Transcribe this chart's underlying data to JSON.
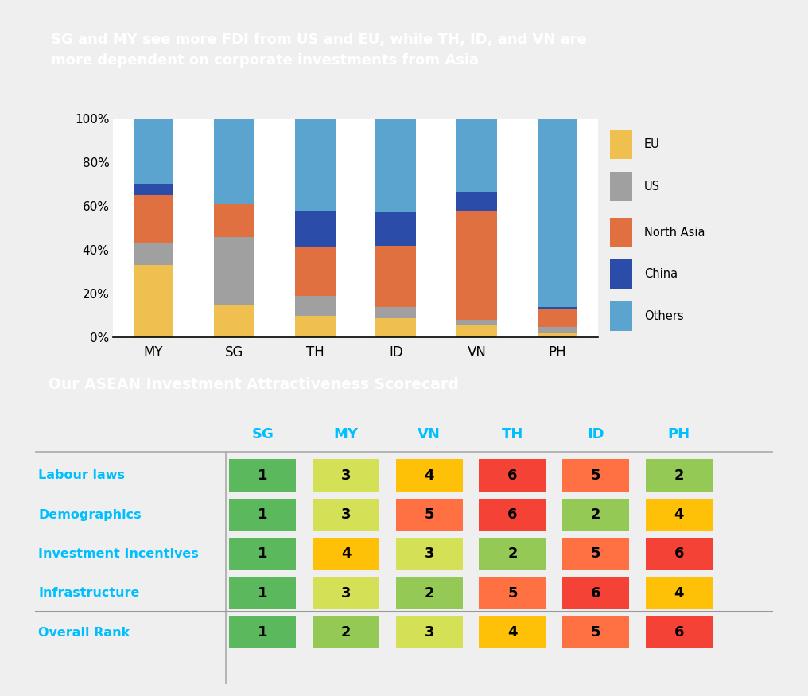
{
  "title1": "SG and MY see more FDI from US and EU, while TH, ID, and VN are\nmore dependent on corporate investments from Asia",
  "title2": "Our ASEAN Investment Attractiveness Scorecard",
  "categories": [
    "MY",
    "SG",
    "TH",
    "ID",
    "VN",
    "PH"
  ],
  "bar_data": {
    "EU": [
      33,
      15,
      10,
      9,
      6,
      2
    ],
    "US": [
      10,
      31,
      9,
      5,
      2,
      3
    ],
    "North Asia": [
      22,
      15,
      22,
      28,
      50,
      8
    ],
    "China": [
      5,
      0,
      17,
      15,
      8,
      1
    ],
    "Others": [
      30,
      39,
      42,
      43,
      34,
      86
    ]
  },
  "bar_colors": {
    "EU": "#EFC050",
    "US": "#A0A0A0",
    "North Asia": "#E07040",
    "China": "#2B4CA8",
    "Others": "#5BA4CF"
  },
  "legend_order": [
    "EU",
    "US",
    "North Asia",
    "China",
    "Others"
  ],
  "title1_bg": "#1C2B3A",
  "title2_bg": "#1C2B3A",
  "scorecard_rows": [
    "Labour laws",
    "Demographics",
    "Investment Incentives",
    "Infrastructure",
    "Overall Rank"
  ],
  "scorecard_cols": [
    "SG",
    "MY",
    "VN",
    "TH",
    "ID",
    "PH"
  ],
  "scorecard_values": [
    [
      1,
      3,
      4,
      6,
      5,
      2
    ],
    [
      1,
      3,
      5,
      6,
      2,
      4
    ],
    [
      1,
      4,
      3,
      2,
      5,
      6
    ],
    [
      1,
      3,
      2,
      5,
      6,
      4
    ],
    [
      1,
      2,
      3,
      4,
      5,
      6
    ]
  ],
  "row_label_color": "#00BFFF",
  "col_label_color": "#00BFFF",
  "chart_bg": "#FFFFFF",
  "outer_bg": "#F0F0F0"
}
